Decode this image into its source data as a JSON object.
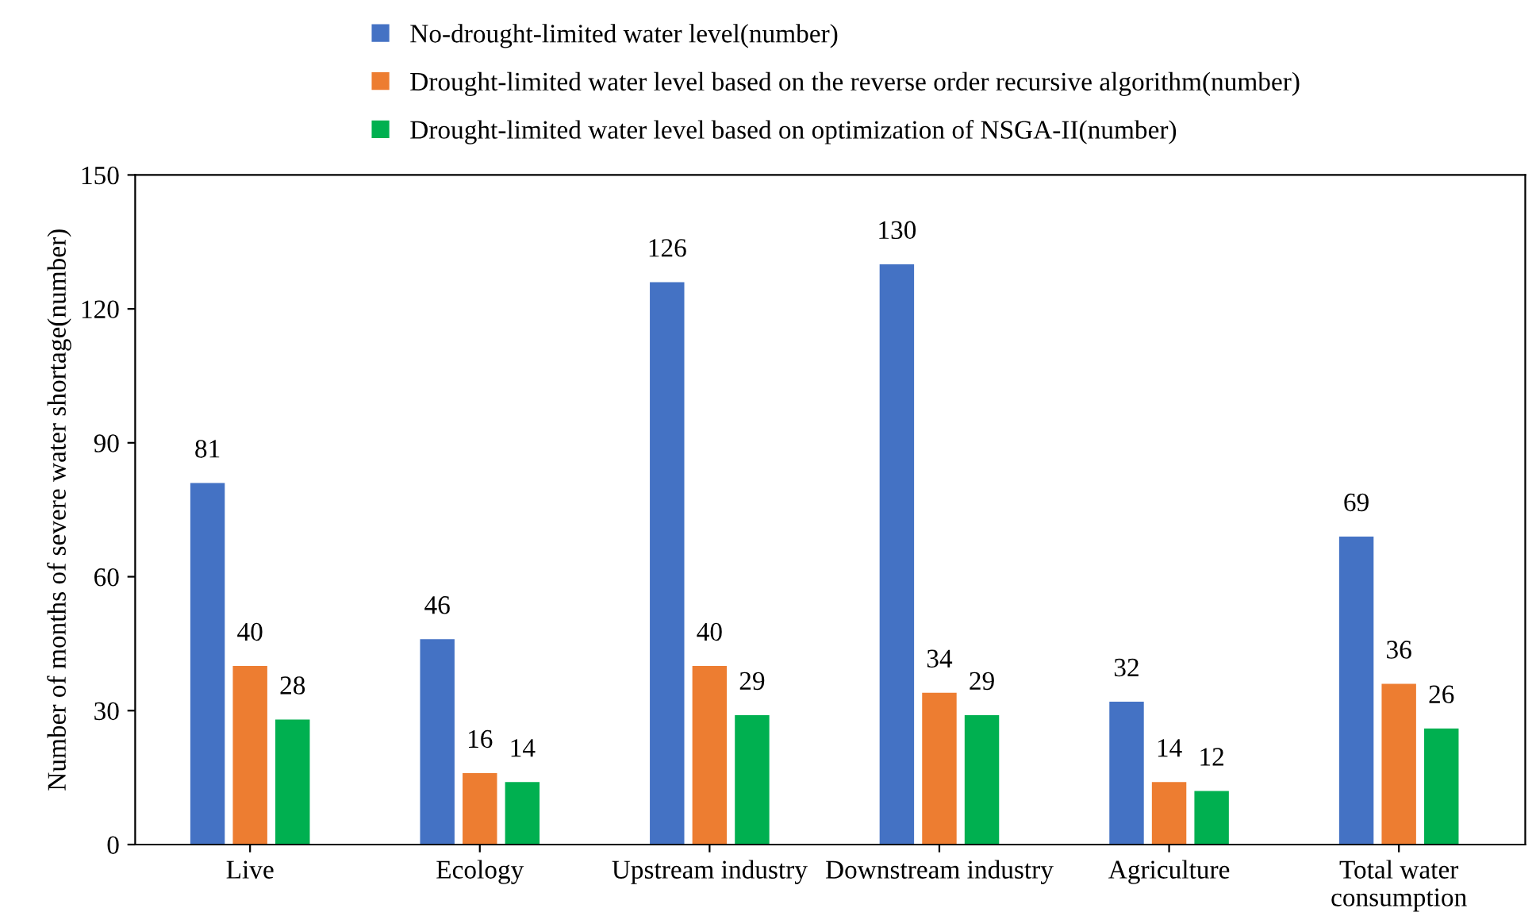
{
  "chart_data": {
    "type": "bar",
    "ylabel": "Number of months of severe water shortage(number)",
    "categories": [
      "Live",
      "Ecology",
      "Upstream industry",
      "Downstream industry",
      "Agriculture",
      "Total water\nconsumption"
    ],
    "series": [
      {
        "name": "No-drought-limited water level(number)",
        "color": "#4472c4",
        "values": [
          81,
          46,
          126,
          130,
          32,
          69
        ]
      },
      {
        "name": "Drought-limited water level based on the reverse order recursive algorithm(number)",
        "color": "#ed7d31",
        "values": [
          40,
          16,
          40,
          34,
          14,
          36
        ]
      },
      {
        "name": "Drought-limited water level based on optimization of NSGA-II(number)",
        "color": "#00b050",
        "values": [
          28,
          14,
          29,
          29,
          12,
          26
        ]
      }
    ],
    "ylim": [
      0,
      150
    ],
    "yticks": [
      0,
      30,
      60,
      90,
      120,
      150
    ],
    "grid": false,
    "legend": "top",
    "data_labels": true
  }
}
